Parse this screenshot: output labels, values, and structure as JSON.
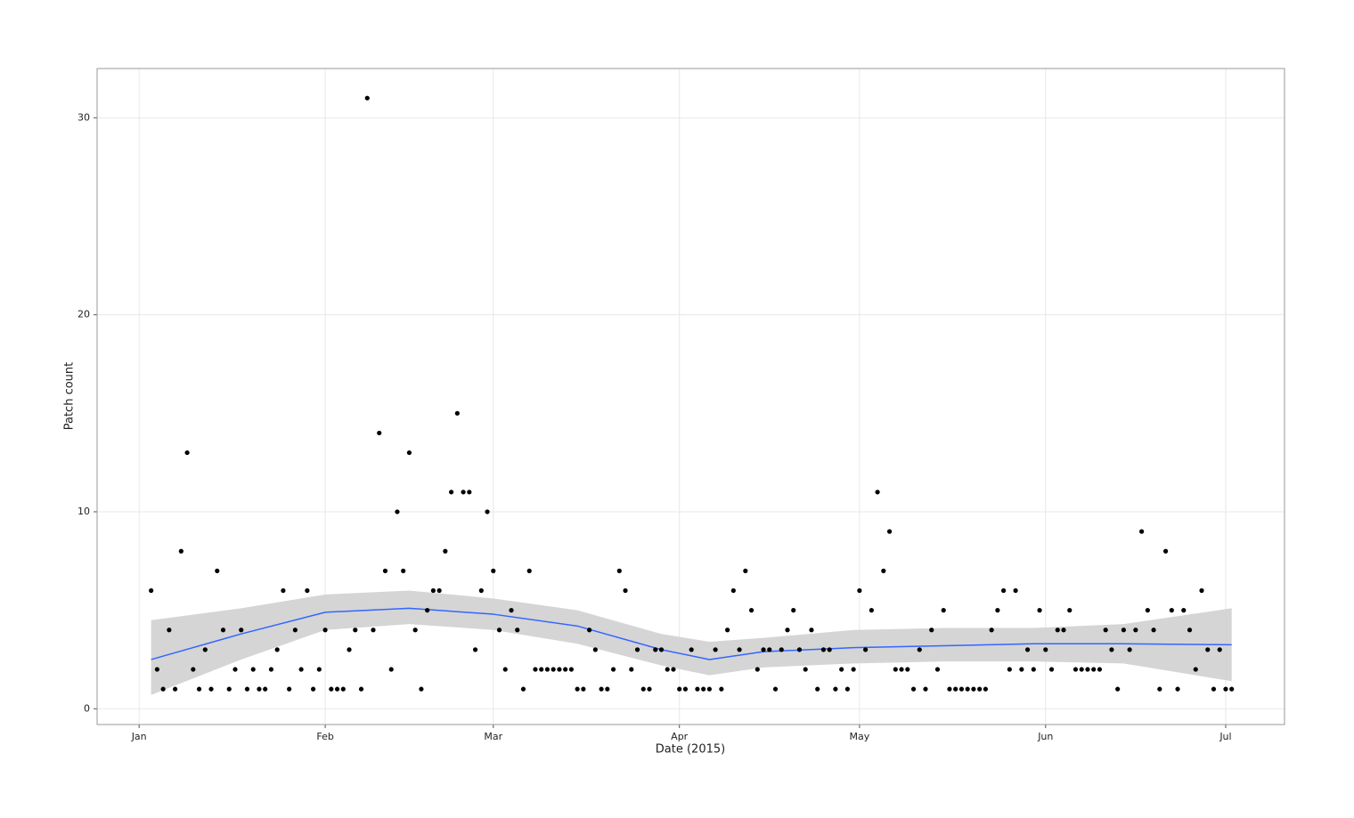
{
  "chart_data": {
    "type": "scatter",
    "xlabel": "Date (2015)",
    "ylabel": "Patch count",
    "xlim": [
      -6,
      191.8
    ],
    "ylim": [
      -0.8,
      32.5
    ],
    "xticks": [
      {
        "value": 1,
        "label": "Jan"
      },
      {
        "value": 32,
        "label": "Feb"
      },
      {
        "value": 60,
        "label": "Mar"
      },
      {
        "value": 91,
        "label": "Apr"
      },
      {
        "value": 121,
        "label": "May"
      },
      {
        "value": 152,
        "label": "Jun"
      },
      {
        "value": 182,
        "label": "Jul"
      }
    ],
    "yticks": [
      0,
      10,
      20,
      30
    ],
    "grid": true,
    "color": "#000000",
    "x": [
      3,
      4,
      5,
      6,
      7,
      8,
      9,
      10,
      11,
      12,
      13,
      14,
      15,
      16,
      17,
      18,
      19,
      20,
      21,
      22,
      23,
      24,
      25,
      26,
      27,
      28,
      29,
      30,
      31,
      32,
      33,
      34,
      35,
      36,
      37,
      38,
      39,
      40,
      41,
      42,
      43,
      44,
      45,
      46,
      47,
      48,
      49,
      50,
      51,
      52,
      53,
      54,
      55,
      56,
      57,
      58,
      59,
      60,
      61,
      62,
      63,
      64,
      65,
      66,
      67,
      68,
      69,
      70,
      71,
      72,
      73,
      74,
      75,
      76,
      77,
      78,
      79,
      80,
      81,
      82,
      83,
      84,
      85,
      86,
      87,
      88,
      89,
      90,
      91,
      92,
      93,
      94,
      95,
      96,
      97,
      98,
      99,
      100,
      101,
      102,
      103,
      104,
      105,
      106,
      107,
      108,
      109,
      110,
      111,
      112,
      113,
      114,
      115,
      116,
      117,
      118,
      119,
      120,
      121,
      122,
      123,
      124,
      125,
      126,
      127,
      128,
      129,
      130,
      131,
      132,
      133,
      134,
      135,
      136,
      137,
      138,
      139,
      140,
      141,
      142,
      143,
      144,
      145,
      146,
      147,
      148,
      149,
      150,
      151,
      152,
      153,
      154,
      155,
      156,
      157,
      158,
      159,
      160,
      161,
      162,
      163,
      164,
      165,
      166,
      167,
      168,
      169,
      170,
      171,
      172,
      173,
      174,
      175,
      176,
      177,
      178,
      179,
      180,
      181,
      182,
      183
    ],
    "values": [
      6,
      2,
      1,
      4,
      1,
      8,
      13,
      2,
      1,
      3,
      1,
      7,
      4,
      1,
      2,
      4,
      1,
      2,
      1,
      1,
      2,
      3,
      6,
      1,
      4,
      2,
      6,
      1,
      2,
      4,
      1,
      1,
      1,
      3,
      4,
      1,
      31,
      4,
      14,
      7,
      2,
      10,
      7,
      13,
      4,
      1,
      5,
      6,
      6,
      8,
      11,
      15,
      11,
      11,
      3,
      6,
      10,
      7,
      4,
      2,
      5,
      4,
      1,
      7,
      2,
      2,
      2,
      2,
      2,
      2,
      2,
      1,
      1,
      4,
      3,
      1,
      1,
      2,
      7,
      6,
      2,
      3,
      1,
      1,
      3,
      3,
      2,
      2,
      1,
      1,
      3,
      1,
      1,
      1,
      3,
      1,
      4,
      6,
      3,
      7,
      5,
      2,
      3,
      3,
      1,
      3,
      4,
      5,
      3,
      2,
      4,
      1,
      3,
      3,
      1,
      2,
      1,
      2,
      6,
      3,
      5,
      11,
      7,
      9,
      2,
      2,
      2,
      1,
      3,
      1,
      4,
      2,
      5,
      1,
      1,
      1,
      1,
      1,
      1,
      1,
      4,
      5,
      6,
      2,
      6,
      2,
      3,
      2,
      5,
      3,
      2,
      4,
      4,
      5,
      2,
      2,
      2,
      2,
      2,
      4,
      3,
      1,
      4,
      3,
      4,
      9,
      5,
      4,
      1,
      8,
      5,
      1,
      5,
      4,
      2,
      6,
      3,
      1,
      3,
      1,
      1
    ],
    "smooth": {
      "color": "#3366ff",
      "band_color": "#d3d3d3",
      "x": [
        3,
        18,
        32,
        46,
        60,
        74,
        88,
        96,
        105,
        120,
        135,
        150,
        165,
        183
      ],
      "values": [
        2.5,
        3.8,
        4.9,
        5.1,
        4.8,
        4.2,
        3.0,
        2.5,
        2.9,
        3.1,
        3.2,
        3.3,
        3.3,
        3.25
      ],
      "lower": [
        0.7,
        2.5,
        4.0,
        4.3,
        4.0,
        3.3,
        2.2,
        1.7,
        2.1,
        2.3,
        2.4,
        2.4,
        2.3,
        1.4
      ],
      "upper": [
        4.5,
        5.1,
        5.8,
        6.0,
        5.6,
        5.0,
        3.8,
        3.4,
        3.6,
        4.0,
        4.1,
        4.1,
        4.3,
        5.1
      ]
    }
  }
}
